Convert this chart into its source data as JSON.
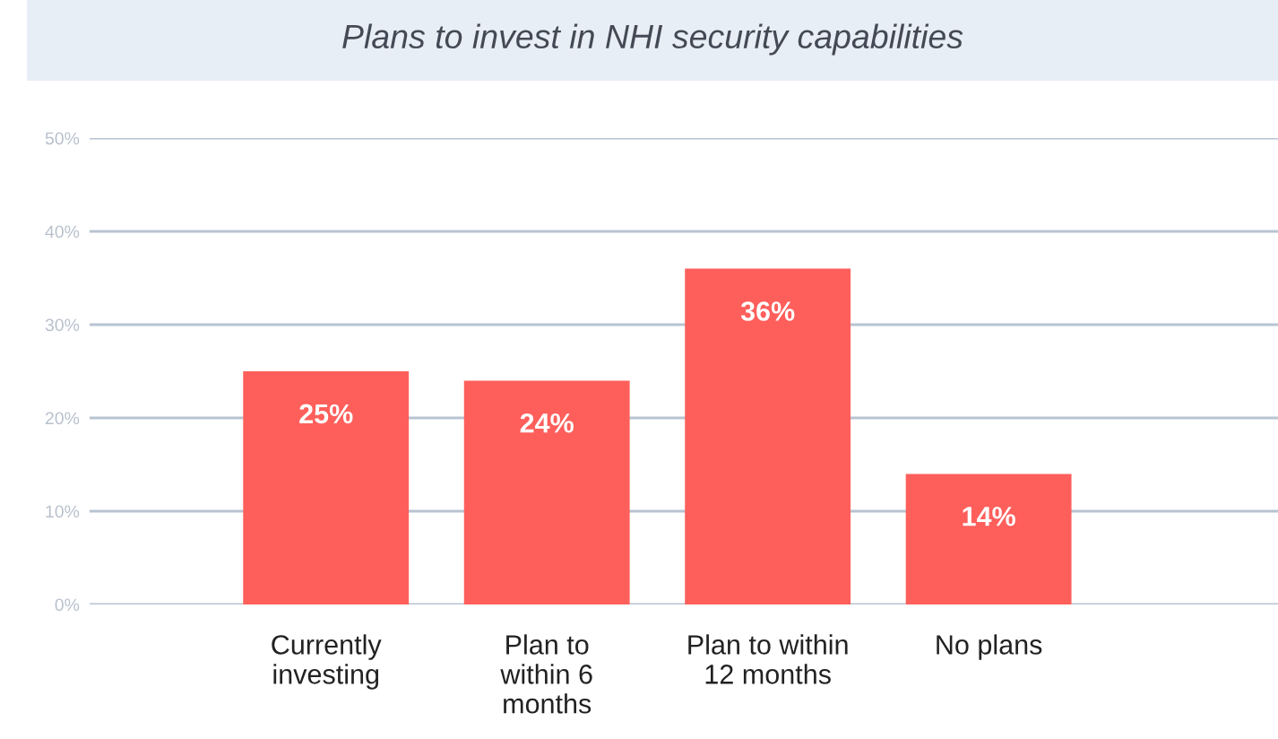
{
  "chart_data": {
    "type": "bar",
    "title": "Plans to invest in NHI security capabilities",
    "categories": [
      "Currently\ninvesting",
      "Plan to\nwithin 6\nmonths",
      "Plan to within\n12 months",
      "No plans"
    ],
    "values": [
      25,
      24,
      36,
      14
    ],
    "value_labels": [
      "25%",
      "24%",
      "36%",
      "14%"
    ],
    "color": "#fe5f5b",
    "ylim": [
      0,
      50
    ],
    "yticks": [
      {
        "value": 0,
        "label": "0%"
      },
      {
        "value": 10,
        "label": "10%"
      },
      {
        "value": 20,
        "label": "20%"
      },
      {
        "value": 30,
        "label": "30%"
      },
      {
        "value": 40,
        "label": "40%"
      },
      {
        "value": 50,
        "label": "50%"
      }
    ],
    "grid": "y"
  }
}
